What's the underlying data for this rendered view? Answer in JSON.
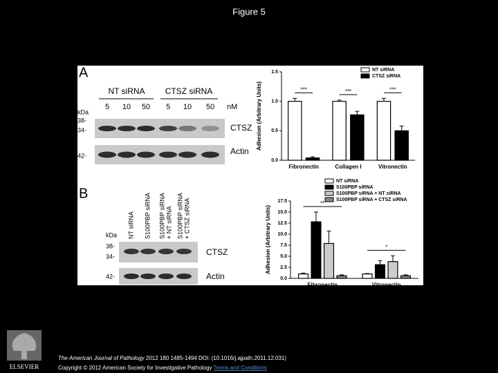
{
  "title": "Figure 5",
  "figure": {
    "panel_a": {
      "label": "A",
      "groups": [
        "NT siRNA",
        "CTSZ siRNA"
      ],
      "lanes": [
        "5",
        "10",
        "50",
        "5",
        "10",
        "50"
      ],
      "unit": "nM",
      "kda": "kDa",
      "markers": [
        "38-",
        "34-",
        "42-"
      ],
      "blots": [
        "CTSZ",
        "Actin"
      ]
    },
    "panel_b": {
      "label": "B",
      "lanes": [
        [
          "NT siRNA"
        ],
        [
          "S100PBP siRNA"
        ],
        [
          "S100PBP siRNA",
          "+ NT siRNA"
        ],
        [
          "S100PBP siRNA",
          "+ CTSZ siRNA"
        ]
      ],
      "kda": "kDa",
      "markers": [
        "38-",
        "34-",
        "42-"
      ],
      "blots": [
        "CTSZ",
        "Actin"
      ]
    }
  },
  "chart_data": [
    {
      "type": "bar",
      "ylabel": "Adhesion (Arbitrary Units)",
      "categories": [
        "Fibronectin",
        "Collagen I",
        "Vitronectin"
      ],
      "series": [
        {
          "name": "NT siRNA",
          "color": "#ffffff",
          "values": [
            1.0,
            1.0,
            1.0
          ],
          "errors": [
            0.05,
            0.02,
            0.05
          ]
        },
        {
          "name": "CTSZ siRNA",
          "color": "#000000",
          "values": [
            0.04,
            0.77,
            0.5
          ],
          "errors": [
            0.02,
            0.06,
            0.08
          ]
        }
      ],
      "annotations": [
        "***",
        "***",
        "***"
      ],
      "ylim": [
        0,
        1.5
      ],
      "yticks": [
        {
          "value": 0,
          "label": "0.0"
        },
        0.5,
        {
          "value": 1,
          "label": "1.0"
        },
        1.5
      ]
    },
    {
      "type": "bar",
      "ylabel": "Adhesion (Arbitrary Units)",
      "categories": [
        "Fibronectin",
        "Vitronectin"
      ],
      "series": [
        {
          "name": "NT siRNA",
          "color": "#ffffff",
          "values": [
            1.0,
            1.0
          ],
          "errors": [
            0.2,
            0.1
          ]
        },
        {
          "name": "S100PBP siRNA",
          "color": "#000000",
          "values": [
            12.8,
            3.1
          ],
          "errors": [
            2.2,
            0.9
          ]
        },
        {
          "name": "S100PBP siRNA + NT siRNA",
          "color": "#cccccc",
          "values": [
            7.9,
            3.8
          ],
          "errors": [
            2.8,
            1.3
          ]
        },
        {
          "name": "S100PBP siRNA + CTSZ siRNA",
          "color": "#888888",
          "values": [
            0.6,
            0.6
          ],
          "errors": [
            0.2,
            0.2
          ]
        }
      ],
      "annotations": [
        "**",
        "*"
      ],
      "ylim": [
        0,
        17.5
      ],
      "yticks": [
        {
          "value": 0,
          "label": "0.0"
        },
        2.5,
        {
          "value": 5,
          "label": "5.0"
        },
        7.5,
        {
          "value": 10,
          "label": "10.0"
        },
        12.5,
        {
          "value": 15,
          "label": "15.0"
        },
        17.5
      ]
    }
  ],
  "footer": {
    "journal": "The American Journal of Pathology",
    "citation": " 2012 180 1485-1494 DOI: (10.1016/j.ajpath.2011.12.031)",
    "copyright": "Copyright © 2012 American Society for Investigative Pathology ",
    "link": "Terms and Conditions"
  },
  "logo": "ELSEVIER"
}
